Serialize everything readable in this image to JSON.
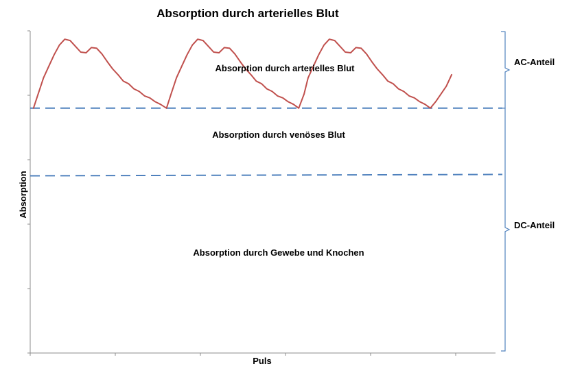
{
  "chart_data": {
    "type": "line",
    "title": "Absorption durch arterielles Blut",
    "xlabel": "Puls",
    "ylabel": "Absorption",
    "ylim": [
      0,
      500
    ],
    "xlim": [
      0,
      700
    ],
    "grid": false,
    "baselines": [
      {
        "name": "arteriell",
        "y": 380
      },
      {
        "name": "venös",
        "y": 275
      }
    ],
    "regions": [
      {
        "label": "Absorption durch arterielles Blut"
      },
      {
        "label": "Absorption durch venöses Blut"
      },
      {
        "label": "Absorption durch Gewebe und Knochen"
      }
    ],
    "brackets": [
      {
        "label": "AC-Anteil",
        "range": [
          380,
          488
        ]
      },
      {
        "label": "DC-Anteil",
        "range": [
          0,
          380
        ]
      }
    ],
    "series": [
      {
        "color": "#c0504d",
        "x": [
          5,
          12,
          20,
          28,
          36,
          44,
          52,
          60,
          68,
          76,
          84,
          92,
          100,
          108,
          116,
          124,
          132,
          140,
          148,
          156,
          164,
          172,
          180,
          188,
          196,
          205,
          212,
          220,
          228,
          236,
          244,
          252,
          260,
          268,
          276,
          284,
          292,
          300,
          308,
          316,
          324,
          332,
          340,
          348,
          356,
          364,
          372,
          380,
          388,
          396,
          404,
          412,
          418,
          426,
          434,
          442,
          450,
          458,
          466,
          474,
          482,
          490,
          498,
          506,
          514,
          522,
          530,
          538,
          546,
          554,
          562,
          570,
          578,
          586,
          594,
          602,
          610,
          618,
          626,
          634
        ],
        "y": [
          380,
          402,
          427,
          445,
          463,
          478,
          487,
          485,
          476,
          467,
          466,
          474,
          473,
          464,
          452,
          441,
          432,
          422,
          418,
          410,
          406,
          399,
          396,
          390,
          386,
          380,
          402,
          427,
          445,
          463,
          478,
          487,
          485,
          476,
          467,
          466,
          474,
          473,
          464,
          452,
          441,
          432,
          422,
          418,
          410,
          406,
          399,
          396,
          390,
          386,
          380,
          402,
          427,
          445,
          463,
          478,
          487,
          485,
          476,
          467,
          466,
          474,
          473,
          464,
          452,
          441,
          432,
          422,
          418,
          410,
          406,
          399,
          396,
          390,
          386,
          380,
          390,
          402,
          414,
          432
        ]
      }
    ]
  }
}
